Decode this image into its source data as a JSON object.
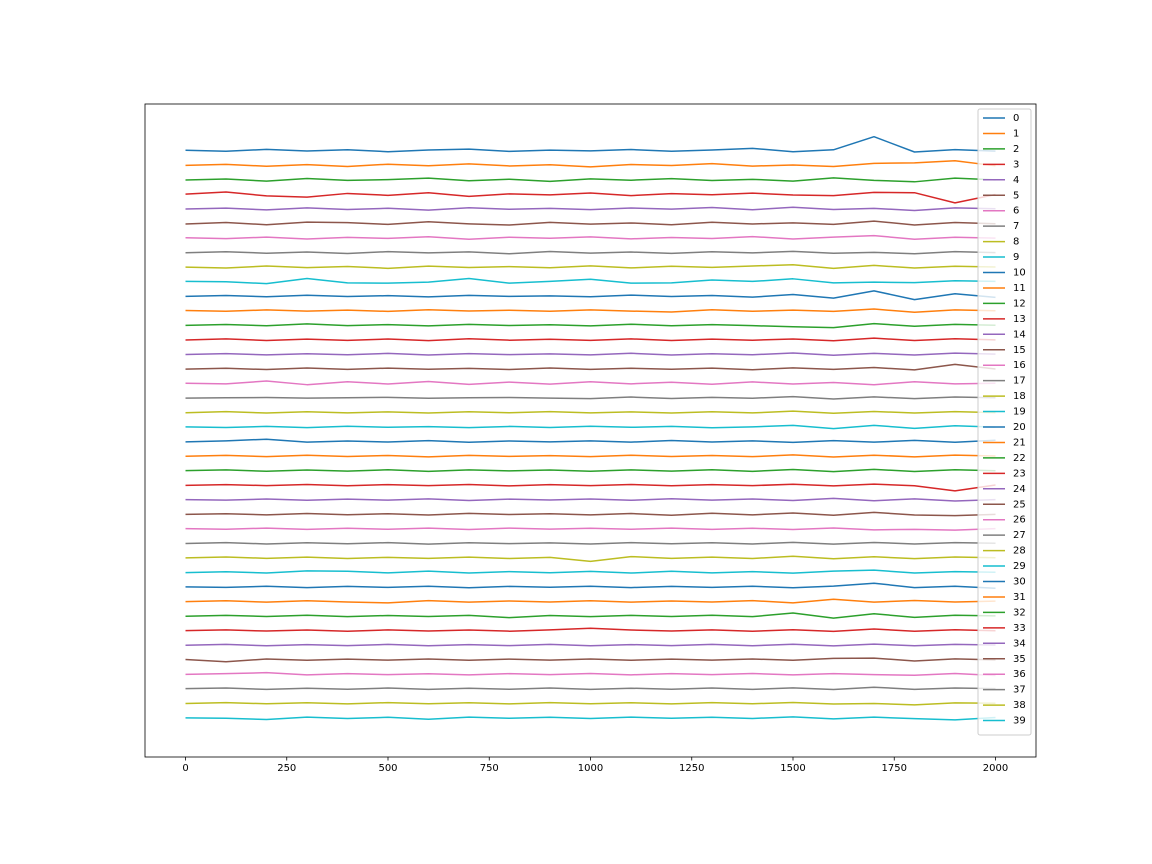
{
  "chart_data": {
    "type": "line",
    "x": [
      0,
      100,
      200,
      300,
      400,
      500,
      600,
      700,
      800,
      900,
      1000,
      1100,
      1200,
      1300,
      1400,
      1500,
      1600,
      1700,
      1800,
      1900,
      2000
    ],
    "xlim": [
      -100,
      2100
    ],
    "xticks": [
      0,
      250,
      500,
      750,
      1000,
      1250,
      1500,
      1750,
      2000
    ],
    "ylim": [
      -41.7,
      3.2
    ],
    "legend": "upper right",
    "series": [
      {
        "name": "0",
        "color": "#1f77b4",
        "values": [
          0.02,
          -0.05,
          0.08,
          -0.03,
          0.05,
          -0.08,
          0.04,
          0.1,
          -0.06,
          0.03,
          -0.02,
          0.07,
          -0.05,
          0.04,
          0.15,
          -0.08,
          0.05,
          0.95,
          -0.1,
          0.06,
          -0.04
        ]
      },
      {
        "name": "1",
        "color": "#ff7f0e",
        "values": [
          -1.02,
          -0.95,
          -1.08,
          -0.97,
          -1.1,
          -0.94,
          -1.05,
          -0.92,
          -1.06,
          -0.98,
          -1.12,
          -0.96,
          -1.03,
          -0.9,
          -1.07,
          -0.99,
          -1.1,
          -0.88,
          -0.85,
          -0.7,
          -1.05
        ]
      },
      {
        "name": "2",
        "color": "#2ca02c",
        "values": [
          -2.03,
          -1.96,
          -2.1,
          -1.92,
          -2.05,
          -2.0,
          -1.9,
          -2.08,
          -1.97,
          -2.12,
          -1.95,
          -2.04,
          -1.93,
          -2.06,
          -1.98,
          -2.1,
          -1.88,
          -2.05,
          -2.15,
          -1.9,
          -2.02
        ]
      },
      {
        "name": "3",
        "color": "#d62728",
        "values": [
          -3.0,
          -2.85,
          -3.12,
          -3.2,
          -2.95,
          -3.08,
          -2.9,
          -3.15,
          -2.98,
          -3.05,
          -2.92,
          -3.1,
          -2.96,
          -3.04,
          -2.93,
          -3.06,
          -3.1,
          -2.88,
          -2.9,
          -3.6,
          -3.02
        ]
      },
      {
        "name": "4",
        "color": "#9467bd",
        "values": [
          -4.02,
          -3.96,
          -4.08,
          -3.94,
          -4.05,
          -3.97,
          -4.1,
          -3.93,
          -4.04,
          -3.98,
          -4.06,
          -3.95,
          -4.03,
          -3.92,
          -4.07,
          -3.9,
          -4.05,
          -3.98,
          -4.12,
          -3.94,
          -4.0
        ]
      },
      {
        "name": "5",
        "color": "#8c564b",
        "values": [
          -5.05,
          -4.95,
          -5.1,
          -4.92,
          -4.96,
          -5.08,
          -4.9,
          -5.04,
          -5.12,
          -4.94,
          -5.06,
          -4.98,
          -5.1,
          -4.93,
          -5.05,
          -4.97,
          -5.08,
          -4.85,
          -5.12,
          -4.95,
          -5.03
        ]
      },
      {
        "name": "6",
        "color": "#e377c2",
        "values": [
          -6.0,
          -6.06,
          -5.95,
          -6.08,
          -5.97,
          -6.04,
          -5.93,
          -6.1,
          -5.96,
          -6.03,
          -5.94,
          -6.07,
          -5.98,
          -6.05,
          -5.92,
          -6.08,
          -5.95,
          -5.85,
          -6.1,
          -5.96,
          -6.02
        ]
      },
      {
        "name": "7",
        "color": "#7f7f7f",
        "values": [
          -7.03,
          -6.96,
          -7.06,
          -6.98,
          -7.08,
          -6.95,
          -7.04,
          -6.97,
          -7.1,
          -6.94,
          -7.05,
          -6.98,
          -7.07,
          -6.96,
          -7.04,
          -6.93,
          -7.06,
          -7.0,
          -7.1,
          -6.95,
          -7.02
        ]
      },
      {
        "name": "8",
        "color": "#bcbd22",
        "values": [
          -8.02,
          -8.08,
          -7.94,
          -8.05,
          -7.97,
          -8.1,
          -7.95,
          -8.04,
          -7.98,
          -8.06,
          -7.93,
          -8.07,
          -7.96,
          -8.03,
          -7.94,
          -7.85,
          -8.1,
          -7.9,
          -8.08,
          -7.96,
          -8.01
        ]
      },
      {
        "name": "9",
        "color": "#17becf",
        "values": [
          -9.0,
          -9.02,
          -9.15,
          -8.8,
          -9.1,
          -9.12,
          -9.05,
          -8.8,
          -9.12,
          -9.0,
          -8.85,
          -9.12,
          -9.1,
          -8.9,
          -9.0,
          -8.82,
          -9.1,
          -9.05,
          -9.08,
          -8.95,
          -9.0
        ]
      },
      {
        "name": "10",
        "color": "#1f77b4",
        "values": [
          -10.03,
          -9.97,
          -10.05,
          -9.95,
          -10.04,
          -9.98,
          -10.06,
          -9.96,
          -10.03,
          -9.99,
          -10.05,
          -9.94,
          -10.04,
          -9.97,
          -10.08,
          -9.9,
          -10.15,
          -9.65,
          -10.25,
          -9.85,
          -10.1
        ]
      },
      {
        "name": "11",
        "color": "#ff7f0e",
        "values": [
          -11.0,
          -11.05,
          -10.96,
          -11.04,
          -10.97,
          -11.06,
          -10.95,
          -11.03,
          -10.98,
          -11.05,
          -10.96,
          -11.04,
          -11.1,
          -10.95,
          -11.05,
          -10.97,
          -11.06,
          -10.9,
          -11.12,
          -10.96,
          -11.02
        ]
      },
      {
        "name": "12",
        "color": "#2ca02c",
        "values": [
          -12.02,
          -11.96,
          -12.05,
          -11.92,
          -12.04,
          -11.97,
          -12.06,
          -11.95,
          -12.03,
          -11.98,
          -12.06,
          -11.94,
          -12.05,
          -11.97,
          -12.04,
          -12.12,
          -12.18,
          -11.9,
          -12.08,
          -11.95,
          -12.01
        ]
      },
      {
        "name": "13",
        "color": "#d62728",
        "values": [
          -13.03,
          -12.95,
          -13.06,
          -12.97,
          -13.05,
          -12.96,
          -13.07,
          -12.94,
          -13.04,
          -12.98,
          -13.05,
          -12.95,
          -13.06,
          -12.97,
          -13.04,
          -12.96,
          -13.08,
          -12.9,
          -13.06,
          -12.94,
          -13.02
        ]
      },
      {
        "name": "14",
        "color": "#9467bd",
        "values": [
          -14.02,
          -13.96,
          -14.05,
          -13.97,
          -14.04,
          -13.95,
          -14.06,
          -13.96,
          -14.03,
          -13.98,
          -14.05,
          -13.94,
          -14.06,
          -13.97,
          -14.04,
          -13.92,
          -14.08,
          -13.95,
          -14.06,
          -13.93,
          -14.0
        ]
      },
      {
        "name": "15",
        "color": "#8c564b",
        "values": [
          -15.03,
          -14.97,
          -15.06,
          -14.95,
          -15.05,
          -14.96,
          -15.04,
          -14.98,
          -15.06,
          -14.95,
          -15.05,
          -14.97,
          -15.04,
          -14.96,
          -15.07,
          -14.94,
          -15.05,
          -14.92,
          -15.08,
          -14.7,
          -15.02
        ]
      },
      {
        "name": "16",
        "color": "#e377c2",
        "values": [
          -16.0,
          -16.04,
          -15.85,
          -16.1,
          -15.9,
          -16.05,
          -15.88,
          -16.08,
          -15.92,
          -16.06,
          -15.9,
          -16.04,
          -15.93,
          -16.07,
          -15.91,
          -16.05,
          -15.95,
          -16.1,
          -15.9,
          -16.04,
          -16.0
        ]
      },
      {
        "name": "17",
        "color": "#7f7f7f",
        "values": [
          -17.02,
          -17.0,
          -16.98,
          -17.02,
          -17.0,
          -16.97,
          -17.03,
          -17.0,
          -16.98,
          -17.02,
          -17.06,
          -16.95,
          -17.05,
          -16.97,
          -17.03,
          -16.92,
          -17.08,
          -16.94,
          -17.06,
          -16.95,
          -17.0
        ]
      },
      {
        "name": "18",
        "color": "#bcbd22",
        "values": [
          -18.03,
          -17.95,
          -18.05,
          -17.96,
          -18.04,
          -17.97,
          -18.05,
          -17.96,
          -18.03,
          -17.95,
          -18.04,
          -17.97,
          -18.05,
          -17.96,
          -18.04,
          -17.92,
          -18.06,
          -17.94,
          -18.05,
          -17.95,
          -18.02
        ]
      },
      {
        "name": "19",
        "color": "#17becf",
        "values": [
          -19.0,
          -19.04,
          -18.97,
          -19.05,
          -18.96,
          -19.03,
          -18.98,
          -19.05,
          -18.97,
          -19.04,
          -18.96,
          -19.03,
          -18.97,
          -19.06,
          -19.0,
          -18.9,
          -19.12,
          -18.9,
          -19.1,
          -18.92,
          -19.02
        ]
      },
      {
        "name": "20",
        "color": "#1f77b4",
        "values": [
          -20.03,
          -19.96,
          -19.85,
          -20.05,
          -19.97,
          -20.04,
          -19.95,
          -20.06,
          -19.97,
          -20.03,
          -19.96,
          -20.05,
          -19.94,
          -20.04,
          -19.96,
          -20.07,
          -19.95,
          -20.05,
          -19.93,
          -20.06,
          -19.92
        ]
      },
      {
        "name": "21",
        "color": "#ff7f0e",
        "values": [
          -21.02,
          -20.96,
          -21.05,
          -20.95,
          -21.04,
          -20.97,
          -21.06,
          -20.96,
          -21.03,
          -20.98,
          -21.05,
          -20.95,
          -21.04,
          -20.97,
          -21.05,
          -20.93,
          -21.07,
          -20.95,
          -21.06,
          -20.94,
          -21.0
        ]
      },
      {
        "name": "22",
        "color": "#2ca02c",
        "values": [
          -22.01,
          -21.96,
          -22.05,
          -21.97,
          -22.04,
          -21.95,
          -22.06,
          -21.96,
          -22.03,
          -21.97,
          -22.05,
          -21.96,
          -22.04,
          -21.95,
          -22.06,
          -21.93,
          -22.08,
          -21.92,
          -22.07,
          -21.95,
          -22.02
        ]
      },
      {
        "name": "23",
        "color": "#d62728",
        "values": [
          -23.02,
          -22.97,
          -23.04,
          -22.96,
          -23.05,
          -22.97,
          -23.04,
          -22.96,
          -23.06,
          -22.97,
          -23.04,
          -22.96,
          -23.05,
          -22.97,
          -23.04,
          -22.95,
          -23.06,
          -22.94,
          -23.05,
          -23.4,
          -23.0
        ]
      },
      {
        "name": "24",
        "color": "#9467bd",
        "values": [
          -24.0,
          -24.04,
          -23.96,
          -24.05,
          -23.97,
          -24.04,
          -23.95,
          -24.06,
          -23.97,
          -24.03,
          -23.96,
          -24.05,
          -23.94,
          -24.04,
          -23.96,
          -24.06,
          -23.92,
          -24.08,
          -23.95,
          -24.1,
          -24.0
        ]
      },
      {
        "name": "25",
        "color": "#8c564b",
        "values": [
          -25.02,
          -24.97,
          -25.05,
          -24.96,
          -25.04,
          -24.97,
          -25.06,
          -24.95,
          -25.03,
          -24.97,
          -25.05,
          -24.96,
          -25.08,
          -24.94,
          -25.05,
          -24.92,
          -25.08,
          -24.88,
          -25.06,
          -25.1,
          -25.02
        ]
      },
      {
        "name": "26",
        "color": "#e377c2",
        "values": [
          -26.0,
          -26.04,
          -25.96,
          -26.05,
          -25.97,
          -26.04,
          -25.96,
          -26.06,
          -25.96,
          -26.03,
          -25.97,
          -26.04,
          -25.96,
          -26.05,
          -25.97,
          -26.06,
          -25.95,
          -26.08,
          -26.05,
          -26.1,
          -26.0
        ]
      },
      {
        "name": "27",
        "color": "#7f7f7f",
        "values": [
          -27.02,
          -26.96,
          -27.05,
          -26.97,
          -27.04,
          -26.96,
          -27.06,
          -26.97,
          -27.03,
          -26.98,
          -27.05,
          -26.96,
          -27.04,
          -26.97,
          -27.05,
          -26.94,
          -27.06,
          -26.95,
          -27.05,
          -26.96,
          -27.0
        ]
      },
      {
        "name": "28",
        "color": "#bcbd22",
        "values": [
          -28.01,
          -27.95,
          -28.04,
          -27.96,
          -28.05,
          -27.97,
          -28.04,
          -27.96,
          -28.05,
          -27.97,
          -28.25,
          -27.92,
          -28.04,
          -27.96,
          -28.05,
          -27.9,
          -28.07,
          -27.93,
          -28.06,
          -27.95,
          -28.0
        ]
      },
      {
        "name": "29",
        "color": "#17becf",
        "values": [
          -29.02,
          -28.96,
          -29.05,
          -28.9,
          -28.93,
          -29.04,
          -28.92,
          -29.05,
          -28.95,
          -29.03,
          -28.94,
          -29.05,
          -28.93,
          -29.04,
          -28.95,
          -29.06,
          -28.92,
          -28.85,
          -29.05,
          -28.95,
          -29.0
        ]
      },
      {
        "name": "30",
        "color": "#1f77b4",
        "values": [
          -30.0,
          -30.04,
          -29.96,
          -30.05,
          -29.97,
          -30.04,
          -29.96,
          -30.06,
          -29.97,
          -30.03,
          -29.96,
          -30.05,
          -29.97,
          -30.04,
          -29.96,
          -30.06,
          -29.95,
          -29.75,
          -30.05,
          -29.96,
          -30.1
        ]
      },
      {
        "name": "31",
        "color": "#ff7f0e",
        "values": [
          -31.02,
          -30.96,
          -31.05,
          -30.96,
          -31.04,
          -31.1,
          -30.95,
          -31.05,
          -30.97,
          -31.04,
          -30.96,
          -31.05,
          -30.97,
          -31.04,
          -30.95,
          -31.1,
          -30.85,
          -31.05,
          -30.94,
          -31.04,
          -30.98
        ]
      },
      {
        "name": "32",
        "color": "#2ca02c",
        "values": [
          -32.02,
          -31.96,
          -32.04,
          -31.95,
          -32.05,
          -31.97,
          -32.04,
          -31.96,
          -32.12,
          -31.97,
          -32.05,
          -31.96,
          -32.04,
          -31.95,
          -32.05,
          -31.8,
          -32.15,
          -31.85,
          -32.1,
          -31.95,
          -32.0
        ]
      },
      {
        "name": "33",
        "color": "#d62728",
        "values": [
          -33.01,
          -32.96,
          -33.04,
          -32.97,
          -33.05,
          -32.96,
          -33.04,
          -32.97,
          -33.05,
          -32.96,
          -32.85,
          -32.97,
          -33.04,
          -32.96,
          -33.05,
          -32.95,
          -33.06,
          -32.9,
          -33.05,
          -32.95,
          -33.02
        ]
      },
      {
        "name": "34",
        "color": "#9467bd",
        "values": [
          -34.02,
          -33.96,
          -34.05,
          -33.97,
          -34.04,
          -33.96,
          -34.05,
          -33.97,
          -34.04,
          -33.96,
          -34.05,
          -33.97,
          -34.04,
          -33.96,
          -34.05,
          -33.95,
          -34.06,
          -33.94,
          -34.05,
          -33.96,
          -34.0
        ]
      },
      {
        "name": "35",
        "color": "#8c564b",
        "values": [
          -35.0,
          -35.15,
          -34.96,
          -35.05,
          -34.97,
          -35.04,
          -34.96,
          -35.05,
          -34.97,
          -35.04,
          -34.96,
          -35.05,
          -34.97,
          -35.04,
          -34.96,
          -35.05,
          -34.92,
          -34.9,
          -35.1,
          -34.95,
          -35.02
        ]
      },
      {
        "name": "36",
        "color": "#e377c2",
        "values": [
          -36.02,
          -35.97,
          -35.9,
          -36.05,
          -35.97,
          -36.04,
          -35.98,
          -36.05,
          -35.97,
          -36.04,
          -35.96,
          -36.05,
          -35.97,
          -36.04,
          -35.96,
          -36.05,
          -35.97,
          -36.04,
          -36.08,
          -35.96,
          -36.1
        ]
      },
      {
        "name": "37",
        "color": "#7f7f7f",
        "values": [
          -37.0,
          -36.96,
          -37.05,
          -36.97,
          -37.04,
          -36.96,
          -37.05,
          -36.97,
          -37.04,
          -36.96,
          -37.05,
          -36.97,
          -37.04,
          -36.96,
          -37.05,
          -36.95,
          -37.06,
          -36.9,
          -37.05,
          -36.96,
          -37.0
        ]
      },
      {
        "name": "38",
        "color": "#bcbd22",
        "values": [
          -38.02,
          -37.96,
          -38.04,
          -37.97,
          -38.05,
          -37.96,
          -38.04,
          -37.97,
          -38.05,
          -37.96,
          -38.04,
          -37.97,
          -38.05,
          -37.96,
          -38.04,
          -37.95,
          -38.06,
          -38.02,
          -38.12,
          -37.98,
          -38.0
        ]
      },
      {
        "name": "39",
        "color": "#17becf",
        "values": [
          -39.01,
          -39.04,
          -39.12,
          -38.96,
          -39.05,
          -38.97,
          -39.1,
          -38.96,
          -39.04,
          -38.97,
          -39.05,
          -38.96,
          -39.04,
          -38.97,
          -39.05,
          -38.94,
          -39.08,
          -38.96,
          -39.06,
          -39.15,
          -38.98
        ]
      }
    ]
  }
}
